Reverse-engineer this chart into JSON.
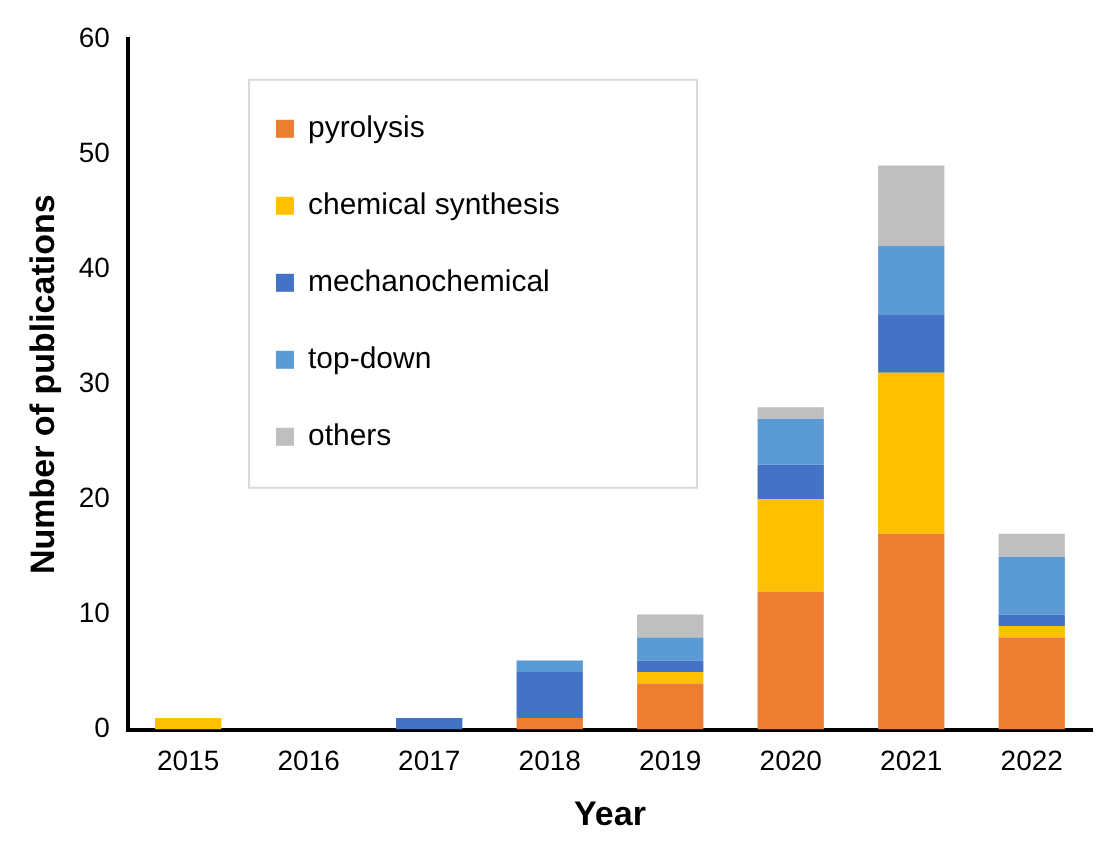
{
  "chart_data": {
    "type": "bar",
    "stacked": true,
    "xlabel": "Year",
    "ylabel": "Number of publications",
    "categories": [
      "2015",
      "2016",
      "2017",
      "2018",
      "2019",
      "2020",
      "2021",
      "2022"
    ],
    "ylim": [
      0,
      60
    ],
    "yticks": [
      0,
      10,
      20,
      30,
      40,
      50,
      60
    ],
    "grid": false,
    "legend": "top left",
    "series": [
      {
        "name": "pyrolysis",
        "color": "#ed7d31",
        "values": [
          0,
          0,
          0,
          1,
          4,
          12,
          17,
          8
        ]
      },
      {
        "name": "chemical synthesis",
        "color": "#ffc000",
        "values": [
          1,
          0,
          0,
          0,
          1,
          8,
          14,
          1
        ]
      },
      {
        "name": "mechanochemical",
        "color": "#4472c4",
        "values": [
          0,
          0,
          1,
          4,
          1,
          3,
          5,
          1
        ]
      },
      {
        "name": "top-down",
        "color": "#5b9bd5",
        "values": [
          0,
          0,
          0,
          1,
          2,
          4,
          6,
          5
        ]
      },
      {
        "name": "others",
        "color": "#bfbfbf",
        "values": [
          0,
          0,
          0,
          0,
          2,
          1,
          7,
          2
        ]
      }
    ]
  }
}
